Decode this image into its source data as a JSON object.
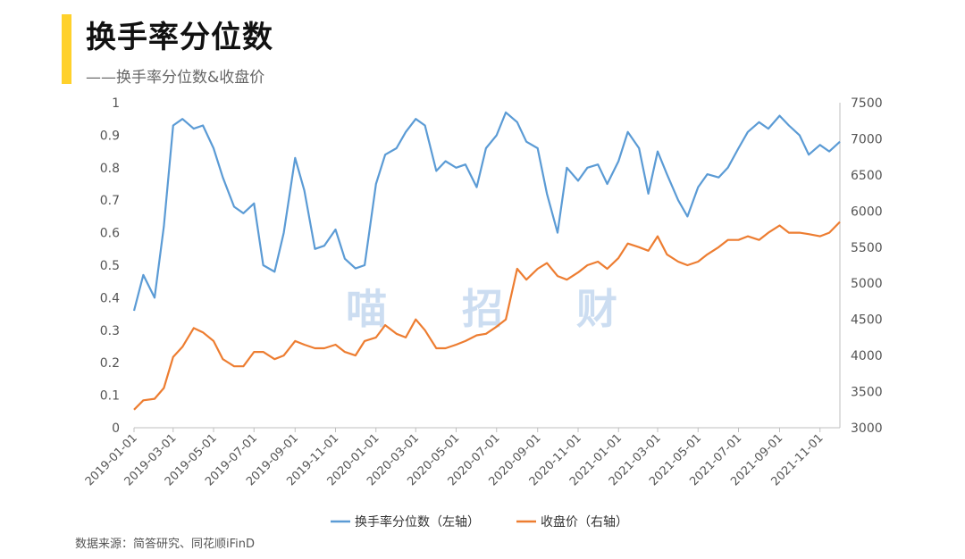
{
  "header": {
    "title": "换手率分位数",
    "subtitle": "——换手率分位数&收盘价"
  },
  "source": "数据来源：简答研究、同花顺iFinD",
  "watermark": [
    "喵",
    "招",
    "财"
  ],
  "colors": {
    "turnover": "#5B9BD5",
    "close": "#ED7D31",
    "accent": "#FFD12B"
  },
  "chart_data": {
    "type": "line",
    "x": [
      "2019-01-01",
      "2019-01-15",
      "2019-02-01",
      "2019-02-15",
      "2019-03-01",
      "2019-03-15",
      "2019-04-01",
      "2019-04-15",
      "2019-05-01",
      "2019-05-15",
      "2019-06-01",
      "2019-06-15",
      "2019-07-01",
      "2019-07-15",
      "2019-08-01",
      "2019-08-15",
      "2019-09-01",
      "2019-09-15",
      "2019-10-01",
      "2019-10-15",
      "2019-11-01",
      "2019-11-15",
      "2019-12-01",
      "2019-12-15",
      "2020-01-01",
      "2020-01-15",
      "2020-02-01",
      "2020-02-15",
      "2020-03-01",
      "2020-03-15",
      "2020-04-01",
      "2020-04-15",
      "2020-05-01",
      "2020-05-15",
      "2020-06-01",
      "2020-06-15",
      "2020-07-01",
      "2020-07-15",
      "2020-08-01",
      "2020-08-15",
      "2020-09-01",
      "2020-09-15",
      "2020-10-01",
      "2020-10-15",
      "2020-11-01",
      "2020-11-15",
      "2020-12-01",
      "2020-12-15",
      "2021-01-01",
      "2021-01-15",
      "2021-02-01",
      "2021-02-15",
      "2021-03-01",
      "2021-03-15",
      "2021-04-01",
      "2021-04-15",
      "2021-05-01",
      "2021-05-15",
      "2021-06-01",
      "2021-06-15",
      "2021-07-01",
      "2021-07-15",
      "2021-08-01",
      "2021-08-15",
      "2021-09-01",
      "2021-09-15",
      "2021-10-01",
      "2021-10-15",
      "2021-11-01",
      "2021-11-15",
      "2021-12-01"
    ],
    "series": [
      {
        "name": "换手率分位数（左轴）",
        "axis": "left",
        "values": [
          0.36,
          0.47,
          0.4,
          0.62,
          0.93,
          0.95,
          0.92,
          0.93,
          0.86,
          0.77,
          0.68,
          0.66,
          0.69,
          0.5,
          0.48,
          0.6,
          0.83,
          0.73,
          0.55,
          0.56,
          0.61,
          0.52,
          0.49,
          0.5,
          0.75,
          0.84,
          0.86,
          0.91,
          0.95,
          0.93,
          0.79,
          0.82,
          0.8,
          0.81,
          0.74,
          0.86,
          0.9,
          0.97,
          0.94,
          0.88,
          0.86,
          0.72,
          0.6,
          0.8,
          0.76,
          0.8,
          0.81,
          0.75,
          0.82,
          0.91,
          0.86,
          0.72,
          0.85,
          0.78,
          0.7,
          0.65,
          0.74,
          0.78,
          0.77,
          0.8,
          0.86,
          0.91,
          0.94,
          0.92,
          0.96,
          0.93,
          0.9,
          0.84,
          0.87,
          0.85,
          0.88
        ]
      },
      {
        "name": "收盘价（右轴）",
        "axis": "right",
        "values": [
          3250,
          3380,
          3400,
          3550,
          3980,
          4120,
          4380,
          4320,
          4200,
          3950,
          3850,
          3850,
          4050,
          4050,
          3950,
          4000,
          4200,
          4150,
          4100,
          4100,
          4150,
          4050,
          4000,
          4200,
          4250,
          4420,
          4300,
          4250,
          4500,
          4350,
          4100,
          4100,
          4150,
          4200,
          4280,
          4300,
          4400,
          4500,
          5200,
          5050,
          5200,
          5280,
          5100,
          5050,
          5150,
          5250,
          5300,
          5200,
          5350,
          5550,
          5500,
          5450,
          5650,
          5400,
          5300,
          5250,
          5300,
          5400,
          5500,
          5600,
          5600,
          5650,
          5600,
          5700,
          5800,
          5700,
          5700,
          5680,
          5650,
          5700,
          5850
        ]
      }
    ],
    "left_axis": {
      "min": 0,
      "max": 1,
      "ticks": [
        "0",
        "0.1",
        "0.2",
        "0.3",
        "0.4",
        "0.5",
        "0.6",
        "0.7",
        "0.8",
        "0.9",
        "1"
      ]
    },
    "right_axis": {
      "min": 3000,
      "max": 7500,
      "ticks": [
        "3000",
        "3500",
        "4000",
        "4500",
        "5000",
        "5500",
        "6000",
        "6500",
        "7000",
        "7500"
      ]
    },
    "x_ticks": [
      "2019-01-01",
      "2019-03-01",
      "2019-05-01",
      "2019-07-01",
      "2019-09-01",
      "2019-11-01",
      "2020-01-01",
      "2020-03-01",
      "2020-05-01",
      "2020-07-01",
      "2020-09-01",
      "2020-11-01",
      "2021-01-01",
      "2021-03-01",
      "2021-05-01",
      "2021-07-01",
      "2021-09-01",
      "2021-11-01"
    ],
    "legend_position": "bottom",
    "grid": false
  }
}
